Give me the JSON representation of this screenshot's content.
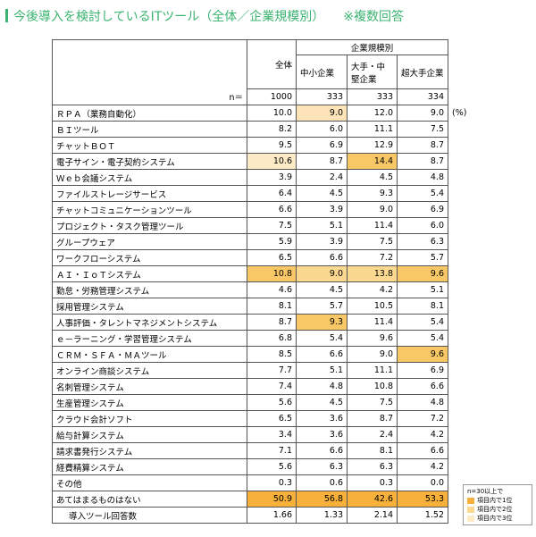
{
  "header": {
    "title": "今後導入を検討しているITツール（全体／企業規模別）",
    "note": "※複数回答"
  },
  "table": {
    "columns": {
      "total": "全体",
      "group": "企業規模別",
      "sub": [
        "中小企業",
        "大手・中堅企業",
        "超大手企業"
      ]
    },
    "n_label": "n＝",
    "n": [
      "1000",
      "333",
      "333",
      "334"
    ],
    "unit": "(%)",
    "rows": [
      {
        "label": "ＲＰＡ（業務自動化）",
        "values": [
          "10.0",
          "9.0",
          "12.0",
          "9.0"
        ],
        "fills": [
          null,
          "#fde3b8",
          null,
          null
        ]
      },
      {
        "label": "ＢＩツール",
        "values": [
          "8.2",
          "6.0",
          "11.1",
          "7.5"
        ]
      },
      {
        "label": "チャットＢＯＴ",
        "values": [
          "9.5",
          "6.9",
          "12.9",
          "8.7"
        ]
      },
      {
        "label": "電子サイン・電子契約システム",
        "values": [
          "10.6",
          "8.7",
          "14.4",
          "8.7"
        ],
        "fills": [
          "#fdebc8",
          null,
          "#f9c866",
          null
        ]
      },
      {
        "label": "Ｗｅｂ会議システム",
        "values": [
          "3.9",
          "2.4",
          "4.5",
          "4.8"
        ]
      },
      {
        "label": "ファイルストレージサービス",
        "values": [
          "6.4",
          "4.5",
          "9.3",
          "5.4"
        ]
      },
      {
        "label": "チャットコミュニケーションツール",
        "values": [
          "6.6",
          "3.9",
          "9.0",
          "6.9"
        ]
      },
      {
        "label": "プロジェクト・タスク管理ツール",
        "values": [
          "7.5",
          "5.1",
          "11.4",
          "6.0"
        ]
      },
      {
        "label": "グループウェア",
        "values": [
          "5.9",
          "3.9",
          "7.5",
          "6.3"
        ]
      },
      {
        "label": "ワークフローシステム",
        "values": [
          "6.5",
          "6.6",
          "7.2",
          "5.7"
        ]
      },
      {
        "label": "ＡＩ・ＩｏＴシステム",
        "values": [
          "10.8",
          "9.0",
          "13.8",
          "9.6"
        ],
        "fills": [
          "#f9c866",
          "#fbd88f",
          "#fbd88f",
          "#f9c866"
        ]
      },
      {
        "label": "勤怠・労務管理システム",
        "values": [
          "4.6",
          "4.5",
          "4.2",
          "5.1"
        ]
      },
      {
        "label": "採用管理システム",
        "values": [
          "8.1",
          "5.7",
          "10.5",
          "8.1"
        ]
      },
      {
        "label": "人事評価・タレントマネジメントシステム",
        "values": [
          "8.7",
          "9.3",
          "11.4",
          "5.4"
        ],
        "fills": [
          null,
          "#f9c866",
          null,
          null
        ]
      },
      {
        "label": "ｅ－ラーニング・学習管理システム",
        "values": [
          "6.8",
          "5.4",
          "9.6",
          "5.4"
        ]
      },
      {
        "label": "ＣＲＭ・ＳＦＡ・ＭＡツール",
        "values": [
          "8.5",
          "6.6",
          "9.0",
          "9.6"
        ],
        "fills": [
          null,
          null,
          null,
          "#f9c866"
        ]
      },
      {
        "label": "オンライン商談システム",
        "values": [
          "7.7",
          "5.1",
          "11.1",
          "6.9"
        ]
      },
      {
        "label": "名刺管理システム",
        "values": [
          "7.4",
          "4.8",
          "10.8",
          "6.6"
        ]
      },
      {
        "label": "生産管理システム",
        "values": [
          "5.6",
          "4.5",
          "7.5",
          "4.8"
        ]
      },
      {
        "label": "クラウド会計ソフト",
        "values": [
          "6.5",
          "3.6",
          "8.7",
          "7.2"
        ]
      },
      {
        "label": "給与計算システム",
        "values": [
          "3.4",
          "3.6",
          "2.4",
          "4.2"
        ]
      },
      {
        "label": "請求書発行システム",
        "values": [
          "7.1",
          "6.6",
          "8.1",
          "6.6"
        ]
      },
      {
        "label": "経費精算システム",
        "values": [
          "5.6",
          "6.3",
          "6.3",
          "4.2"
        ]
      },
      {
        "label": "その他",
        "values": [
          "0.3",
          "0.6",
          "0.3",
          "0.0"
        ]
      },
      {
        "label": "あてはまるものはない",
        "values": [
          "50.9",
          "56.8",
          "42.6",
          "53.3"
        ],
        "fills": [
          "#f7b13a",
          "#f7b13a",
          "#f7b13a",
          "#f7b13a"
        ]
      },
      {
        "label": "導入ツール回答数",
        "values": [
          "1.66",
          "1.33",
          "2.14",
          "1.52"
        ]
      }
    ]
  },
  "legend": {
    "title": "n=30以上で",
    "items": [
      {
        "label": "項目内で1位",
        "color": "#f7b13a"
      },
      {
        "label": "項目内で2位",
        "color": "#fbd88f"
      },
      {
        "label": "項目内で3位",
        "color": "#fdebc8"
      }
    ]
  }
}
